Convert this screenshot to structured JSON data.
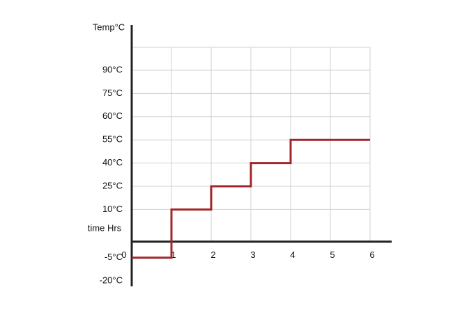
{
  "chart_data": {
    "type": "line",
    "y_label": "Temp°C",
    "x_label": "time Hrs",
    "x": [
      0,
      1,
      1,
      2,
      2,
      3,
      3,
      4,
      4,
      6
    ],
    "series": [
      {
        "color": "#a3262a",
        "values": [
          -5,
          -5,
          10,
          10,
          25,
          25,
          40,
          40,
          55,
          55
        ]
      }
    ],
    "xlim": [
      0,
      6
    ],
    "xticks": [
      0,
      1,
      2,
      3,
      4,
      5,
      6
    ],
    "yticks": [
      {
        "value": 90,
        "label": "90°C"
      },
      {
        "value": 75,
        "label": "75°C"
      },
      {
        "value": 60,
        "label": "60°C"
      },
      {
        "value": 55,
        "label": "55°C"
      },
      {
        "value": 40,
        "label": "40°C"
      },
      {
        "value": 25,
        "label": "25°C"
      },
      {
        "value": 10,
        "label": "10°C"
      },
      {
        "value": -5,
        "label": "-5°C"
      },
      {
        "value": -20,
        "label": "-20°C"
      }
    ],
    "grid": true
  }
}
